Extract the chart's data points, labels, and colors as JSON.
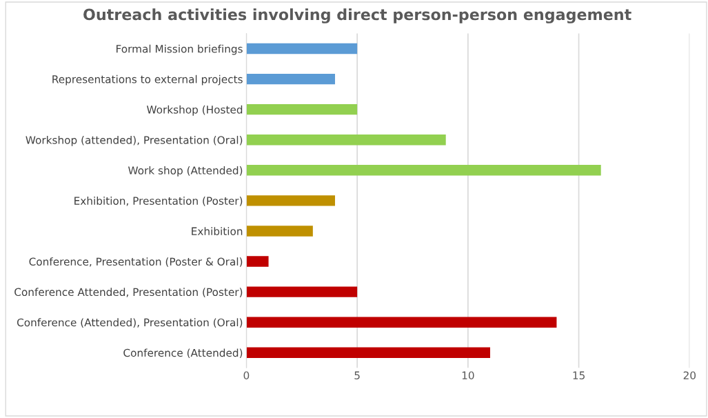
{
  "chart_data": {
    "type": "bar",
    "orientation": "horizontal",
    "title": "Outreach activities involving direct person-person engagement",
    "categories": [
      "Formal Mission briefings",
      "Representations to external projects",
      "Workshop (Hosted",
      "Workshop (attended), Presentation (Oral)",
      "Work shop (Attended)",
      "Exhibition, Presentation (Poster)",
      "Exhibition",
      "Conference, Presentation (Poster & Oral)",
      "Conference Attended, Presentation (Poster)",
      "Conference (Attended), Presentation (Oral)",
      "Conference (Attended)"
    ],
    "values": [
      5,
      4,
      5,
      9,
      16,
      4,
      3,
      1,
      5,
      14,
      11
    ],
    "colors": [
      "#5b9bd5",
      "#5b9bd5",
      "#92d050",
      "#92d050",
      "#92d050",
      "#bf9000",
      "#bf9000",
      "#c00000",
      "#c00000",
      "#c00000",
      "#c00000"
    ],
    "xlim": [
      0,
      20
    ],
    "xticks": [
      0,
      5,
      10,
      15,
      20
    ],
    "grid": "x",
    "legend": false
  }
}
